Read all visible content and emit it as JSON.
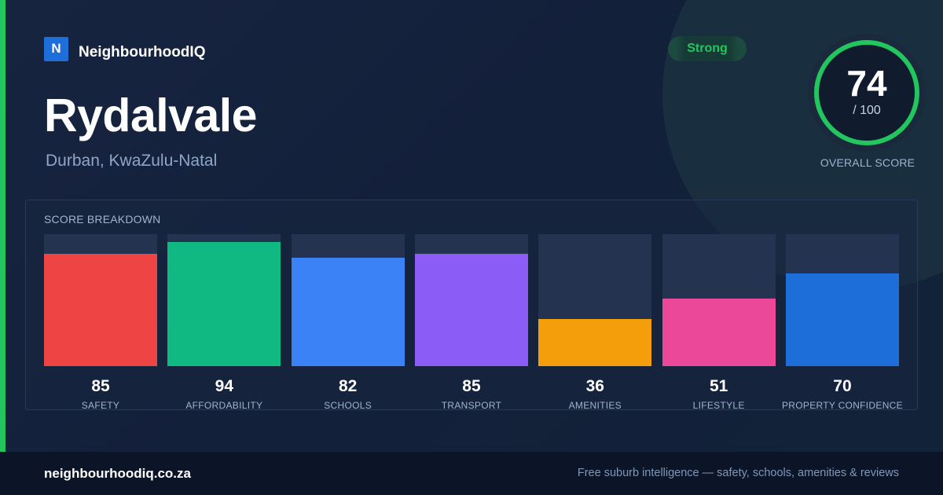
{
  "brand": {
    "logo_letter": "N",
    "name": "NeighbourhoodIQ"
  },
  "suburb": {
    "name": "Rydalvale",
    "location": "Durban, KwaZulu-Natal"
  },
  "overall": {
    "badge": "Strong",
    "score": 74,
    "score_display": "74",
    "max_display": "/ 100",
    "caption": "OVERALL SCORE"
  },
  "breakdown": {
    "title": "SCORE BREAKDOWN",
    "max": 100
  },
  "chart_data": {
    "type": "bar",
    "title": "SCORE BREAKDOWN",
    "ylim": [
      0,
      100
    ],
    "categories": [
      "SAFETY",
      "AFFORDABILITY",
      "SCHOOLS",
      "TRANSPORT",
      "AMENITIES",
      "LIFESTYLE",
      "PROPERTY CONFIDENCE"
    ],
    "values": [
      85,
      94,
      82,
      85,
      36,
      51,
      70
    ],
    "value_labels": [
      "85",
      "94",
      "82",
      "85",
      "36",
      "51",
      "70"
    ],
    "colors": [
      "#ef4444",
      "#10b981",
      "#3b82f6",
      "#8b5cf6",
      "#f59e0b",
      "#ec4899",
      "#1d6ed8"
    ]
  },
  "footer": {
    "site": "neighbourhoodiq.co.za",
    "tagline": "Free suburb intelligence — safety, schools, amenities & reviews"
  },
  "colors": {
    "accent": "#22c55e",
    "brand_blue": "#1d6ed8",
    "ring_track": "#1a2a3c",
    "ring_inner": "#101c2e"
  }
}
